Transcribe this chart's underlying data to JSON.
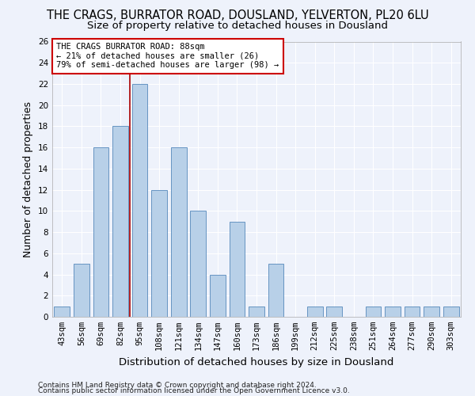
{
  "title": "THE CRAGS, BURRATOR ROAD, DOUSLAND, YELVERTON, PL20 6LU",
  "subtitle": "Size of property relative to detached houses in Dousland",
  "xlabel": "Distribution of detached houses by size in Dousland",
  "ylabel": "Number of detached properties",
  "bin_labels": [
    "43sqm",
    "56sqm",
    "69sqm",
    "82sqm",
    "95sqm",
    "108sqm",
    "121sqm",
    "134sqm",
    "147sqm",
    "160sqm",
    "173sqm",
    "186sqm",
    "199sqm",
    "212sqm",
    "225sqm",
    "238sqm",
    "251sqm",
    "264sqm",
    "277sqm",
    "290sqm",
    "303sqm"
  ],
  "bar_values": [
    1,
    5,
    16,
    18,
    22,
    12,
    16,
    10,
    4,
    9,
    1,
    5,
    0,
    1,
    1,
    0,
    1,
    1,
    1,
    1,
    1
  ],
  "bar_color": "#b8d0e8",
  "bar_edge_color": "#5588bb",
  "vline_x": 3.5,
  "vline_color": "#aa0000",
  "ylim": [
    0,
    26
  ],
  "yticks": [
    0,
    2,
    4,
    6,
    8,
    10,
    12,
    14,
    16,
    18,
    20,
    22,
    24,
    26
  ],
  "annotation_text": "THE CRAGS BURRATOR ROAD: 88sqm\n← 21% of detached houses are smaller (26)\n79% of semi-detached houses are larger (98) →",
  "annotation_box_color": "#ffffff",
  "annotation_box_edge": "#cc0000",
  "footer1": "Contains HM Land Registry data © Crown copyright and database right 2024.",
  "footer2": "Contains public sector information licensed under the Open Government Licence v3.0.",
  "background_color": "#eef2fb",
  "grid_color": "#ffffff",
  "title_fontsize": 10.5,
  "subtitle_fontsize": 9.5,
  "axis_label_fontsize": 9,
  "tick_fontsize": 7.5,
  "footer_fontsize": 6.5,
  "bar_width": 0.8
}
